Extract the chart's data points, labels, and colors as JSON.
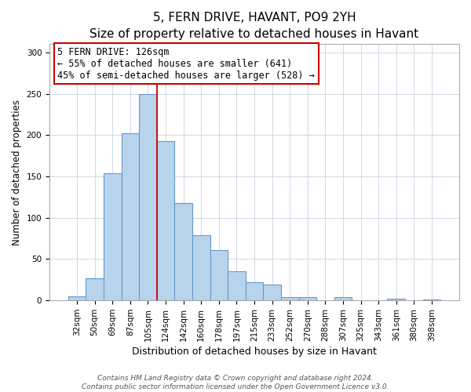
{
  "title": "5, FERN DRIVE, HAVANT, PO9 2YH",
  "subtitle": "Size of property relative to detached houses in Havant",
  "xlabel": "Distribution of detached houses by size in Havant",
  "ylabel": "Number of detached properties",
  "bar_labels": [
    "32sqm",
    "50sqm",
    "69sqm",
    "87sqm",
    "105sqm",
    "124sqm",
    "142sqm",
    "160sqm",
    "178sqm",
    "197sqm",
    "215sqm",
    "233sqm",
    "252sqm",
    "270sqm",
    "288sqm",
    "307sqm",
    "325sqm",
    "343sqm",
    "361sqm",
    "380sqm",
    "398sqm"
  ],
  "bar_values": [
    5,
    27,
    154,
    202,
    250,
    193,
    118,
    79,
    61,
    35,
    22,
    19,
    4,
    4,
    0,
    4,
    0,
    0,
    2,
    0,
    1
  ],
  "bar_color": "#b8d4ec",
  "bar_edge_color": "#6699cc",
  "vline_color": "#cc0000",
  "ylim": [
    0,
    310
  ],
  "yticks": [
    0,
    50,
    100,
    150,
    200,
    250,
    300
  ],
  "annotation_title": "5 FERN DRIVE: 126sqm",
  "annotation_line1": "← 55% of detached houses are smaller (641)",
  "annotation_line2": "45% of semi-detached houses are larger (528) →",
  "annotation_box_edge": "#cc0000",
  "footer_line1": "Contains HM Land Registry data © Crown copyright and database right 2024.",
  "footer_line2": "Contains public sector information licensed under the Open Government Licence v3.0.",
  "title_fontsize": 11,
  "subtitle_fontsize": 9.5,
  "xlabel_fontsize": 9,
  "ylabel_fontsize": 8.5,
  "tick_fontsize": 7.5,
  "footer_fontsize": 6.5,
  "annotation_fontsize": 8.5,
  "vline_bar_index": 4
}
